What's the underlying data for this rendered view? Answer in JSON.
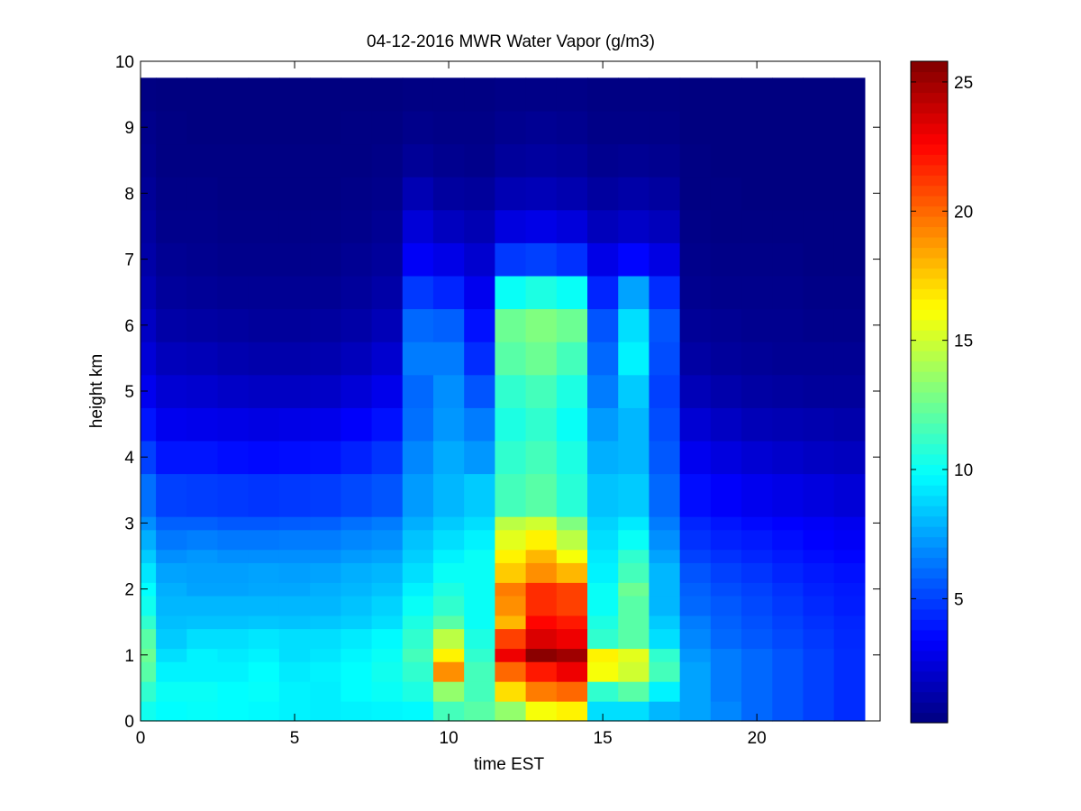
{
  "chart_data": {
    "type": "heatmap",
    "title": "04-12-2016 MWR Water Vapor (g/m3)",
    "xlabel": "time EST",
    "ylabel": "height km",
    "xlim": [
      0,
      24
    ],
    "ylim": [
      0,
      10
    ],
    "x_ticks": [
      0,
      5,
      10,
      15,
      20
    ],
    "y_ticks": [
      0,
      1,
      2,
      3,
      4,
      5,
      6,
      7,
      8,
      9,
      10
    ],
    "colorbar": {
      "min": 0.2,
      "max": 25.8,
      "ticks": [
        5,
        10,
        15,
        20,
        25
      ],
      "colormap": "jet"
    },
    "x": [
      0,
      1,
      2,
      3,
      4,
      5,
      6,
      7,
      8,
      9,
      10,
      11,
      12,
      13,
      14,
      15,
      16,
      17,
      18,
      19,
      20,
      21,
      22,
      23
    ],
    "x_edges": [
      -0.5,
      23.5
    ],
    "y": [
      0.15,
      0.45,
      0.75,
      1.0,
      1.25,
      1.5,
      1.75,
      2.0,
      2.25,
      2.5,
      2.75,
      3.0,
      3.5,
      4.0,
      4.5,
      5.0,
      5.5,
      6.0,
      6.5,
      7.0,
      7.5,
      8.0,
      8.5,
      9.0,
      9.75
    ],
    "y_edges": [
      0,
      0.3,
      0.6,
      0.9,
      1.1,
      1.4,
      1.6,
      1.9,
      2.1,
      2.4,
      2.6,
      2.9,
      3.1,
      3.75,
      4.25,
      4.75,
      5.25,
      5.75,
      6.25,
      6.75,
      7.25,
      7.75,
      8.25,
      8.75,
      9.25,
      9.75
    ],
    "z": [
      [
        10.2,
        9.8,
        9.9,
        9.8,
        9.7,
        9.5,
        9.4,
        9.5,
        9.6,
        9.7,
        11.5,
        12.0,
        13.5,
        16.0,
        16.5,
        9.0,
        9.0,
        8.0,
        7.5,
        6.8,
        6.0,
        5.5,
        5.0,
        4.5
      ],
      [
        11.0,
        10.0,
        10.0,
        9.8,
        9.9,
        9.5,
        9.4,
        9.8,
        10.0,
        10.5,
        13.5,
        11.5,
        17.0,
        19.5,
        20.0,
        11.0,
        12.0,
        9.5,
        7.5,
        6.5,
        6.0,
        5.5,
        5.0,
        4.5
      ],
      [
        12.0,
        9.5,
        9.5,
        9.5,
        9.8,
        9.3,
        9.5,
        9.8,
        10.2,
        11.0,
        19.0,
        11.5,
        20.0,
        22.0,
        23.0,
        16.0,
        15.0,
        11.5,
        7.5,
        6.5,
        6.0,
        5.5,
        5.0,
        4.5
      ],
      [
        12.5,
        9.0,
        9.5,
        9.3,
        9.5,
        9.0,
        9.2,
        9.6,
        10.0,
        11.5,
        16.5,
        11.0,
        23.0,
        25.5,
        25.0,
        16.5,
        15.5,
        11.0,
        7.2,
        6.5,
        6.0,
        5.5,
        5.0,
        4.5
      ],
      [
        12.0,
        8.5,
        9.0,
        9.0,
        9.2,
        9.0,
        9.0,
        9.3,
        9.7,
        11.0,
        14.5,
        10.5,
        21.0,
        23.5,
        23.0,
        11.0,
        12.0,
        9.0,
        6.8,
        6.0,
        5.6,
        5.2,
        4.8,
        4.4
      ],
      [
        11.0,
        8.2,
        8.3,
        8.3,
        8.4,
        8.3,
        8.4,
        8.6,
        9.0,
        10.5,
        12.0,
        10.0,
        18.0,
        22.5,
        22.0,
        10.5,
        12.0,
        8.5,
        6.5,
        5.8,
        5.4,
        5.0,
        4.6,
        4.3
      ],
      [
        10.2,
        8.0,
        8.0,
        8.0,
        8.0,
        8.0,
        8.0,
        8.3,
        8.7,
        10.0,
        11.0,
        10.0,
        19.0,
        21.5,
        21.0,
        10.0,
        12.0,
        8.0,
        6.0,
        5.6,
        5.2,
        4.8,
        4.4,
        4.1
      ],
      [
        9.8,
        7.8,
        7.5,
        7.5,
        7.6,
        7.6,
        7.8,
        8.0,
        8.3,
        9.5,
        10.5,
        10.0,
        19.5,
        21.5,
        21.0,
        10.0,
        12.5,
        8.0,
        5.8,
        5.3,
        5.0,
        4.6,
        4.2,
        4.0
      ],
      [
        9.2,
        7.5,
        7.4,
        7.4,
        7.5,
        7.4,
        7.5,
        7.8,
        8.0,
        9.0,
        10.0,
        10.0,
        17.5,
        19.0,
        18.0,
        9.5,
        11.5,
        8.0,
        5.5,
        5.0,
        4.7,
        4.3,
        4.0,
        3.8
      ],
      [
        8.5,
        7.0,
        7.2,
        7.0,
        7.0,
        7.0,
        7.0,
        7.3,
        7.5,
        8.6,
        9.5,
        10.0,
        16.5,
        18.0,
        16.0,
        9.3,
        11.0,
        7.5,
        5.0,
        4.6,
        4.3,
        4.0,
        3.7,
        3.5
      ],
      [
        7.8,
        6.4,
        6.6,
        6.4,
        6.4,
        6.5,
        6.5,
        6.8,
        7.0,
        8.3,
        9.0,
        9.5,
        15.5,
        16.5,
        14.5,
        9.0,
        10.0,
        7.0,
        4.6,
        4.2,
        4.0,
        3.7,
        3.4,
        3.2
      ],
      [
        7.0,
        5.8,
        5.8,
        5.6,
        5.6,
        5.7,
        5.8,
        6.2,
        6.5,
        7.8,
        8.5,
        9.0,
        14.5,
        15.0,
        13.0,
        8.7,
        9.3,
        6.5,
        4.3,
        3.9,
        3.6,
        3.4,
        3.2,
        3.0
      ],
      [
        6.2,
        5.0,
        4.9,
        4.8,
        4.7,
        4.8,
        4.9,
        5.2,
        5.5,
        7.3,
        8.0,
        8.5,
        11.5,
        12.0,
        10.8,
        8.3,
        8.5,
        6.0,
        3.7,
        3.3,
        3.0,
        2.8,
        2.6,
        2.4
      ],
      [
        5.0,
        3.9,
        3.9,
        3.7,
        3.6,
        3.7,
        3.8,
        4.2,
        4.7,
        6.8,
        7.7,
        7.2,
        11.0,
        11.5,
        10.5,
        7.8,
        8.0,
        5.6,
        3.0,
        2.6,
        2.3,
        2.1,
        1.9,
        1.8
      ],
      [
        3.9,
        3.0,
        2.9,
        2.8,
        2.7,
        2.8,
        2.9,
        3.3,
        3.8,
        6.2,
        7.2,
        6.5,
        10.5,
        11.0,
        10.0,
        7.3,
        8.0,
        5.3,
        2.3,
        1.9,
        1.6,
        1.5,
        1.4,
        1.3
      ],
      [
        3.0,
        2.3,
        2.2,
        2.0,
        1.9,
        1.9,
        2.0,
        2.4,
        2.9,
        6.0,
        7.0,
        5.5,
        11.0,
        11.5,
        10.5,
        6.5,
        8.5,
        5.0,
        1.6,
        1.3,
        1.1,
        1.0,
        0.9,
        0.9
      ],
      [
        2.4,
        1.7,
        1.6,
        1.4,
        1.3,
        1.3,
        1.4,
        1.7,
        2.2,
        6.5,
        6.5,
        4.5,
        12.0,
        12.5,
        11.5,
        6.0,
        9.5,
        5.3,
        1.1,
        0.9,
        0.8,
        0.7,
        0.7,
        0.7
      ],
      [
        1.9,
        1.2,
        1.1,
        1.0,
        0.9,
        0.9,
        1.0,
        1.2,
        1.6,
        6.0,
        5.8,
        3.8,
        12.5,
        13.0,
        12.5,
        5.5,
        9.0,
        5.5,
        0.8,
        0.7,
        0.6,
        0.6,
        0.5,
        0.5
      ],
      [
        1.5,
        0.9,
        0.8,
        0.7,
        0.7,
        0.7,
        0.7,
        0.9,
        1.2,
        4.8,
        4.3,
        3.0,
        10.0,
        10.5,
        10.0,
        4.3,
        7.5,
        4.5,
        0.6,
        0.5,
        0.5,
        0.5,
        0.4,
        0.4
      ],
      [
        1.2,
        0.7,
        0.6,
        0.5,
        0.5,
        0.5,
        0.5,
        0.7,
        0.9,
        3.2,
        2.8,
        2.2,
        4.8,
        5.0,
        4.6,
        2.8,
        3.5,
        2.7,
        0.5,
        0.4,
        0.4,
        0.4,
        0.3,
        0.3
      ],
      [
        1.0,
        0.5,
        0.5,
        0.4,
        0.4,
        0.4,
        0.4,
        0.5,
        0.7,
        2.4,
        1.8,
        1.5,
        2.6,
        2.8,
        2.5,
        1.7,
        2.0,
        1.7,
        0.4,
        0.3,
        0.3,
        0.3,
        0.3,
        0.3
      ],
      [
        0.8,
        0.4,
        0.4,
        0.3,
        0.3,
        0.3,
        0.3,
        0.4,
        0.5,
        1.5,
        1.0,
        0.9,
        1.5,
        1.6,
        1.4,
        1.0,
        1.2,
        1.0,
        0.3,
        0.3,
        0.2,
        0.2,
        0.2,
        0.2
      ],
      [
        0.6,
        0.3,
        0.3,
        0.3,
        0.3,
        0.3,
        0.3,
        0.3,
        0.4,
        0.8,
        0.6,
        0.5,
        0.9,
        1.0,
        0.9,
        0.6,
        0.7,
        0.6,
        0.3,
        0.2,
        0.2,
        0.2,
        0.2,
        0.2
      ],
      [
        0.5,
        0.3,
        0.2,
        0.2,
        0.2,
        0.2,
        0.2,
        0.3,
        0.3,
        0.5,
        0.4,
        0.4,
        0.6,
        0.7,
        0.6,
        0.4,
        0.4,
        0.4,
        0.2,
        0.2,
        0.2,
        0.2,
        0.2,
        0.2
      ],
      [
        0.3,
        0.2,
        0.2,
        0.2,
        0.2,
        0.2,
        0.2,
        0.2,
        0.2,
        0.3,
        0.3,
        0.3,
        0.4,
        0.4,
        0.4,
        0.3,
        0.3,
        0.3,
        0.2,
        0.2,
        0.2,
        0.2,
        0.2,
        0.2
      ]
    ]
  }
}
